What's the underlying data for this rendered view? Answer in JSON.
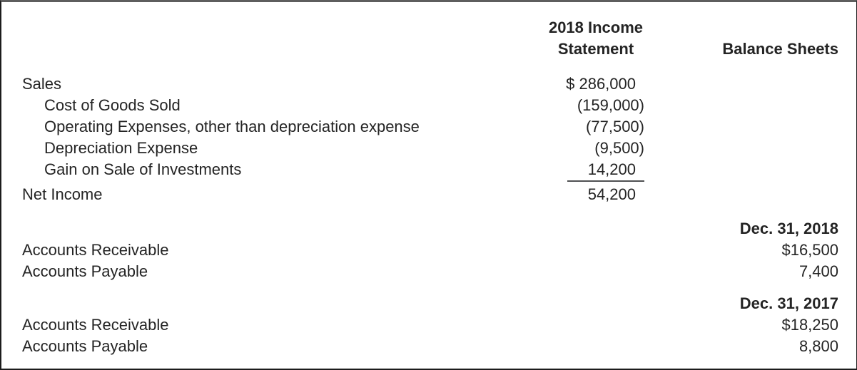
{
  "colors": {
    "text": "#242424",
    "sum_rule": "#4f5052",
    "border_dark": "#1c1c1c",
    "border_top_gray": "#5e5e5e",
    "background": "#ffffff"
  },
  "header": {
    "income_statement": "2018 Income Statement",
    "balance_sheets": "Balance Sheets"
  },
  "income_statement": {
    "rows": [
      {
        "label": "Sales",
        "value": "$ 286,000"
      },
      {
        "label": "Cost of Goods Sold",
        "value": "(159,000)"
      },
      {
        "label": "Operating Expenses, other than depreciation expense",
        "value": "(77,500)"
      },
      {
        "label": "Depreciation Expense",
        "value": "(9,500)"
      },
      {
        "label": "Gain on Sale of Investments",
        "value": "14,200"
      },
      {
        "label": "Net Income",
        "value": "54,200"
      }
    ]
  },
  "balance_sheets": {
    "sections": [
      {
        "date": "Dec. 31, 2018",
        "rows": [
          {
            "label": "Accounts Receivable",
            "value": "$16,500"
          },
          {
            "label": "Accounts Payable",
            "value": "7,400"
          }
        ]
      },
      {
        "date": "Dec. 31, 2017",
        "rows": [
          {
            "label": "Accounts Receivable",
            "value": "$18,250"
          },
          {
            "label": "Accounts Payable",
            "value": "8,800"
          }
        ]
      }
    ]
  }
}
